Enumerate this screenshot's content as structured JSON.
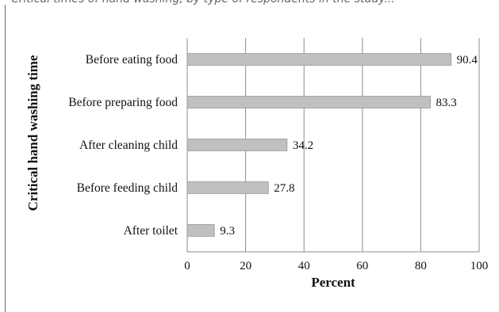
{
  "page": {
    "caption_fragment": "Critical times of hand washing, by type of respondents in the study..."
  },
  "chart_data": {
    "type": "bar",
    "orientation": "horizontal",
    "categories": [
      "Before eating food",
      "Before preparing food",
      "After cleaning child",
      "Before feeding child",
      "After toilet"
    ],
    "values": [
      90.4,
      83.3,
      34.2,
      27.8,
      9.3
    ],
    "value_labels": [
      "90.4",
      "83.3",
      "34.2",
      "27.8",
      "9.3"
    ],
    "title": "",
    "xlabel": "Percent",
    "ylabel": "Critical hand washing time",
    "xlim": [
      0,
      100
    ],
    "xticks": [
      0,
      20,
      40,
      60,
      80,
      100
    ],
    "grid": "vertical",
    "legend": "none",
    "bar_color": "#c0c0c0",
    "bar_edge_color": "#9a9a9a",
    "grid_color": "#8c8c8c"
  }
}
